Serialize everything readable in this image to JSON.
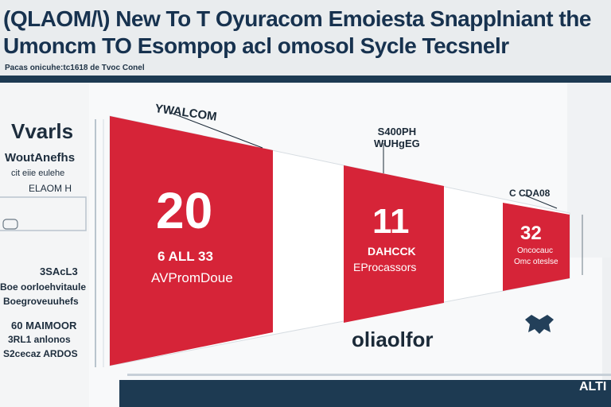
{
  "header": {
    "title_line1": "(QLAOM/\\) New To T Oyuracom Emoiesta Snapplniant the",
    "title_line2": "Umoncm TO Esompop acl omosol Sycle Tecsnelr",
    "subline": "Pacas onicuhe:tc1618 de Tvoc Conel"
  },
  "left_column": {
    "heading": "Vvarls",
    "sub1": "WoutAnefhs",
    "sub2": "cit eiie eulehe",
    "sub3": "ELAOM H",
    "block2_1": "3SAcL3",
    "block2_2": "Boe oorloehvitaule",
    "block2_3": "Boegroveuuhefs",
    "block3_1": "60 MAIMOOR",
    "block3_2": "3RL1 anlonos",
    "block3_3": "S2cecaz ARDOS"
  },
  "annotations": {
    "top_brand": "YWALCOM",
    "mid_callout_line1": "S400PH",
    "mid_callout_line2": "WUHgEG",
    "right_callout": "C CDA08"
  },
  "segments": [
    {
      "number": "20",
      "label1": "6 ALL 33",
      "label2": "AVPromDoue",
      "color": "#d62438"
    },
    {
      "number": "11",
      "label1": "DAHCCK",
      "label2": "EProcassors",
      "color": "#d62438"
    },
    {
      "number": "32",
      "label1": "Oncocauc",
      "label2": "Omc oteslse",
      "color": "#d62438"
    }
  ],
  "footer": {
    "word": "oliaolfor",
    "corner_text": "ALTI"
  },
  "colors": {
    "navy": "#1d3a52",
    "red": "#d62438",
    "white": "#ffffff",
    "background": "#eef0f2"
  }
}
